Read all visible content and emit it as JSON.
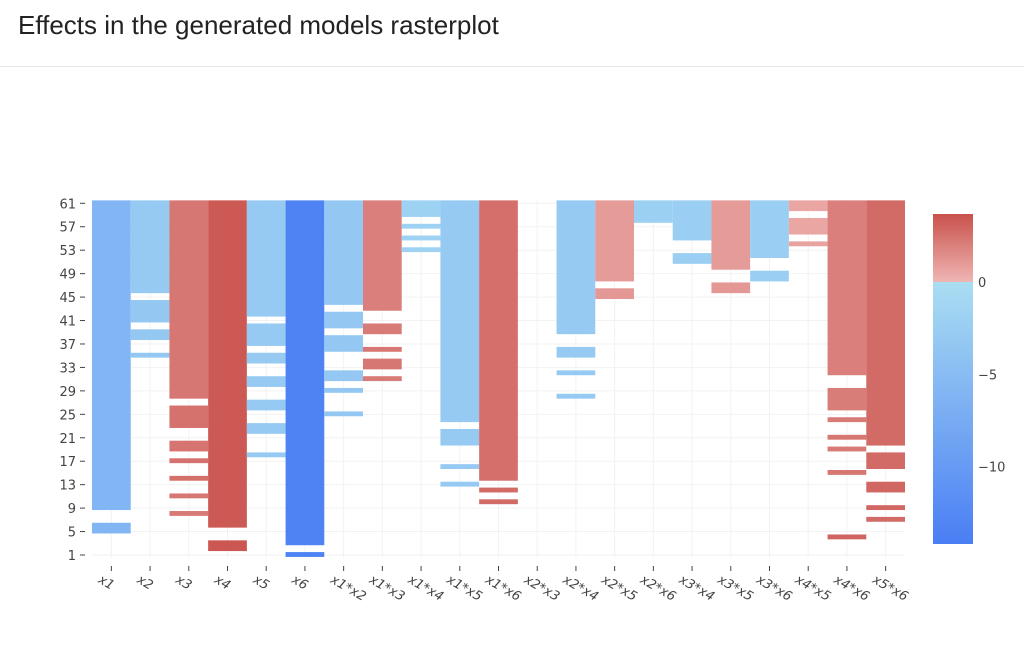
{
  "title": "Effects in the generated models rasterplot",
  "chart_data": {
    "type": "heatmap",
    "title": "Effects in the generated models rasterplot",
    "xlabel": "",
    "ylabel": "",
    "x": [
      "x1",
      "x2",
      "x3",
      "x4",
      "x5",
      "x6",
      "x1*x2",
      "x1*x3",
      "x1*x4",
      "x1*x5",
      "x1*x6",
      "x2*x3",
      "x2*x4",
      "x2*x5",
      "x2*x6",
      "x3*x4",
      "x3*x5",
      "x3*x6",
      "x4*x5",
      "x4*x6",
      "x5*x6"
    ],
    "y_range": [
      1,
      61
    ],
    "y_ticks": [
      1,
      5,
      9,
      13,
      17,
      21,
      25,
      29,
      33,
      37,
      41,
      45,
      49,
      53,
      57,
      61
    ],
    "colorbar": {
      "range": [
        -14.2,
        3.7
      ],
      "ticks": [
        0,
        -5,
        -10
      ],
      "tick_labels": [
        "0",
        "−5",
        "−10"
      ]
    },
    "colors": {
      "neg_low": "#4a7ef4",
      "neg_high": "#aadef2",
      "pos_low": "#efb6b4",
      "pos_high": "#c9514c"
    },
    "cells": [
      [
        [
          9,
          61,
          -6
        ],
        [
          5,
          6,
          -6
        ]
      ],
      [
        [
          46,
          61,
          -3
        ],
        [
          41,
          44,
          -3.2
        ],
        [
          38,
          39,
          -3.2
        ],
        [
          35,
          35,
          -3.2
        ]
      ],
      [
        [
          28,
          61,
          2.3
        ],
        [
          23,
          26,
          2.5
        ],
        [
          19,
          20,
          2.4
        ],
        [
          17,
          17,
          2.5
        ],
        [
          14,
          14,
          2.6
        ],
        [
          11,
          11,
          2.3
        ],
        [
          8,
          8,
          2.2
        ]
      ],
      [
        [
          6,
          61,
          3.4
        ],
        [
          2,
          3,
          3.5
        ]
      ],
      [
        [
          42,
          61,
          -3
        ],
        [
          37,
          40,
          -3
        ],
        [
          34,
          35,
          -3
        ],
        [
          30,
          31,
          -3
        ],
        [
          26,
          27,
          -3
        ],
        [
          22,
          23,
          -3
        ],
        [
          18,
          18,
          -3
        ]
      ],
      [
        [
          3,
          61,
          -13.5
        ],
        [
          1,
          1,
          -13.5
        ]
      ],
      [
        [
          44,
          61,
          -3.3
        ],
        [
          40,
          42,
          -3.3
        ],
        [
          36,
          38,
          -3.3
        ],
        [
          31,
          32,
          -3.3
        ],
        [
          29,
          29,
          -3.3
        ],
        [
          25,
          25,
          -3.3
        ]
      ],
      [
        [
          43,
          61,
          2
        ],
        [
          39,
          40,
          2.2
        ],
        [
          36,
          36,
          2.3
        ],
        [
          33,
          34,
          2.3
        ],
        [
          31,
          31,
          2.2
        ]
      ],
      [
        [
          59,
          61,
          -1.8
        ],
        [
          57,
          57,
          -1.8
        ],
        [
          55,
          55,
          -1.8
        ],
        [
          53,
          53,
          -1.8
        ]
      ],
      [
        [
          24,
          61,
          -3
        ],
        [
          20,
          22,
          -3
        ],
        [
          16,
          16,
          -3
        ],
        [
          13,
          13,
          -3
        ]
      ],
      [
        [
          14,
          61,
          2.6
        ],
        [
          12,
          12,
          2.8
        ],
        [
          10,
          10,
          2.8
        ]
      ],
      [],
      [
        [
          39,
          61,
          -3
        ],
        [
          35,
          36,
          -3
        ],
        [
          32,
          32,
          -3
        ],
        [
          28,
          28,
          -3
        ]
      ],
      [
        [
          48,
          61,
          1
        ],
        [
          45,
          46,
          1.1
        ]
      ],
      [
        [
          58,
          61,
          -2
        ]
      ],
      [
        [
          55,
          61,
          -2.3
        ],
        [
          51,
          52,
          -2.3
        ]
      ],
      [
        [
          50,
          61,
          1
        ],
        [
          46,
          47,
          1.1
        ]
      ],
      [
        [
          52,
          61,
          -2.3
        ],
        [
          48,
          49,
          -2.3
        ]
      ],
      [
        [
          60,
          61,
          0.6
        ],
        [
          56,
          58,
          0.6
        ],
        [
          54,
          54,
          0.7
        ]
      ],
      [
        [
          32,
          61,
          2
        ],
        [
          26,
          29,
          2.1
        ],
        [
          24,
          24,
          2.2
        ],
        [
          21,
          21,
          2.3
        ],
        [
          19,
          19,
          2.2
        ],
        [
          15,
          15,
          2.3
        ],
        [
          4,
          4,
          3
        ]
      ],
      [
        [
          20,
          61,
          2.8
        ],
        [
          16,
          18,
          2.8
        ],
        [
          12,
          13,
          2.9
        ],
        [
          9,
          9,
          2.9
        ],
        [
          7,
          7,
          2.8
        ]
      ]
    ]
  }
}
